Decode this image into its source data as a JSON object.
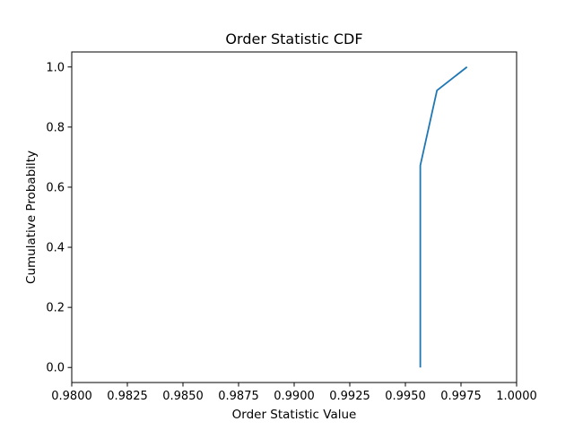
{
  "chart_data": {
    "type": "line",
    "title": "Order Statistic CDF",
    "xlabel": "Order Statistic Value",
    "ylabel": "Cumulative Probabilty",
    "xlim": [
      0.98,
      1.0
    ],
    "ylim": [
      -0.05,
      1.05
    ],
    "x_ticks": [
      "0.9800",
      "0.9825",
      "0.9850",
      "0.9875",
      "0.9900",
      "0.9925",
      "0.9950",
      "0.9975",
      "1.0000"
    ],
    "y_ticks": [
      "0.0",
      "0.2",
      "0.4",
      "0.6",
      "0.8",
      "1.0"
    ],
    "grid": false,
    "series": [
      {
        "color": "#1f77b4",
        "x": [
          0.99567,
          0.99567,
          0.99642,
          0.99777
        ],
        "y": [
          0.0,
          0.672,
          0.922,
          1.0
        ]
      }
    ]
  }
}
